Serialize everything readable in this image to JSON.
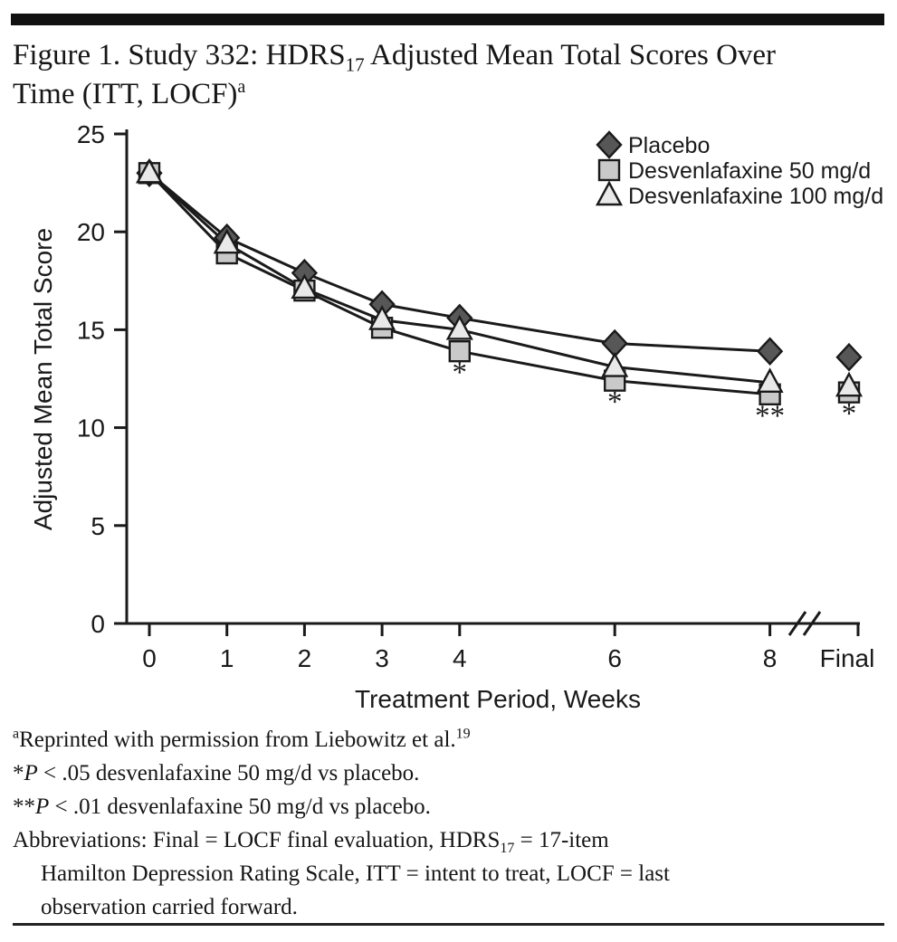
{
  "title": {
    "line1_main": "Figure 1. Study 332: HDRS",
    "line1_sub": "17",
    "line1_rest": " Adjusted Mean Total Scores Over",
    "line2_main": "Time (ITT, LOCF)",
    "line2_sup": "a"
  },
  "chart_data": {
    "type": "line",
    "x_categories": [
      "0",
      "1",
      "2",
      "3",
      "4",
      "6",
      "8",
      "Final"
    ],
    "xlabel": "Treatment Period, Weeks",
    "ylabel": "Adjusted Mean Total Score",
    "ylim": [
      0,
      25
    ],
    "yticks": [
      0,
      5,
      10,
      15,
      20,
      25
    ],
    "axis_break_before": "Final",
    "grid": "off",
    "legend_position": "top-right",
    "line_color": "#1a1a1a",
    "series": [
      {
        "name": "Placebo",
        "marker": "diamond",
        "fill": "#575757",
        "values": [
          23.0,
          19.7,
          17.9,
          16.3,
          15.6,
          14.3,
          13.9,
          13.6
        ]
      },
      {
        "name": "Desvenlafaxine 50 mg/d",
        "marker": "square",
        "fill": "#c9c9c9",
        "values": [
          23.0,
          18.9,
          17.0,
          15.1,
          13.9,
          12.4,
          11.7,
          11.8
        ]
      },
      {
        "name": "Desvenlafaxine 100 mg/d",
        "marker": "triangle",
        "fill": "#e9e9e9",
        "values": [
          23.0,
          19.4,
          17.1,
          15.5,
          15.0,
          13.1,
          12.3,
          12.1
        ]
      }
    ],
    "annotations": [
      {
        "x": "4",
        "label": "*",
        "series": "Desvenlafaxine 50 mg/d"
      },
      {
        "x": "6",
        "label": "*",
        "series": "Desvenlafaxine 50 mg/d"
      },
      {
        "x": "8",
        "label": "**",
        "series": "Desvenlafaxine 50 mg/d"
      },
      {
        "x": "Final",
        "label": "*",
        "series": "Desvenlafaxine 50 mg/d"
      }
    ]
  },
  "footnotes": {
    "f1": {
      "sup": "a",
      "text": "Reprinted with permission from Liebowitz et al.",
      "ref": "19"
    },
    "f2": {
      "star": "*",
      "p": "P",
      "rest": " < .05 desvenlafaxine 50 mg/d vs placebo."
    },
    "f3": {
      "star": "**",
      "p": "P",
      "rest": " < .01 desvenlafaxine 50 mg/d vs placebo."
    },
    "f4": {
      "l1a": "Abbreviations: Final = LOCF final evaluation, HDRS",
      "l1sub": "17",
      "l1b": " = 17-item",
      "l2": "Hamilton Depression Rating Scale, ITT = intent to treat, LOCF = last",
      "l3": "observation carried forward."
    }
  }
}
